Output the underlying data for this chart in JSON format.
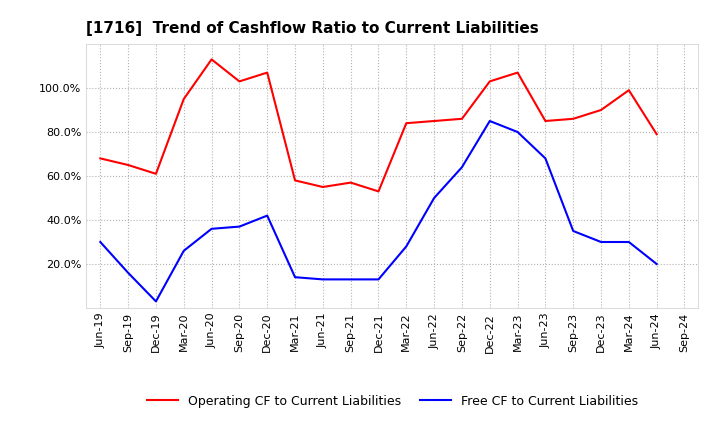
{
  "title": "[1716]  Trend of Cashflow Ratio to Current Liabilities",
  "x_labels": [
    "Jun-19",
    "Sep-19",
    "Dec-19",
    "Mar-20",
    "Jun-20",
    "Sep-20",
    "Dec-20",
    "Mar-21",
    "Jun-21",
    "Sep-21",
    "Dec-21",
    "Mar-22",
    "Jun-22",
    "Sep-22",
    "Dec-22",
    "Mar-23",
    "Jun-23",
    "Sep-23",
    "Dec-23",
    "Mar-24",
    "Jun-24",
    "Sep-24"
  ],
  "operating_cf": [
    68,
    65,
    61,
    95,
    113,
    103,
    107,
    58,
    55,
    57,
    53,
    84,
    85,
    86,
    103,
    107,
    85,
    86,
    90,
    99,
    79,
    null
  ],
  "free_cf": [
    30,
    16,
    3,
    26,
    36,
    37,
    42,
    14,
    13,
    13,
    13,
    28,
    50,
    64,
    85,
    80,
    68,
    35,
    30,
    30,
    20,
    null
  ],
  "operating_color": "#ff0000",
  "free_color": "#0000ff",
  "ylim": [
    0,
    120
  ],
  "yticks": [
    20,
    40,
    60,
    80,
    100
  ],
  "ytick_labels": [
    "20.0%",
    "40.0%",
    "60.0%",
    "80.0%",
    "100.0%"
  ],
  "legend_labels": [
    "Operating CF to Current Liabilities",
    "Free CF to Current Liabilities"
  ],
  "background_color": "#ffffff",
  "grid_color": "#aaaaaa",
  "title_fontsize": 11,
  "tick_fontsize": 8,
  "legend_fontsize": 9
}
